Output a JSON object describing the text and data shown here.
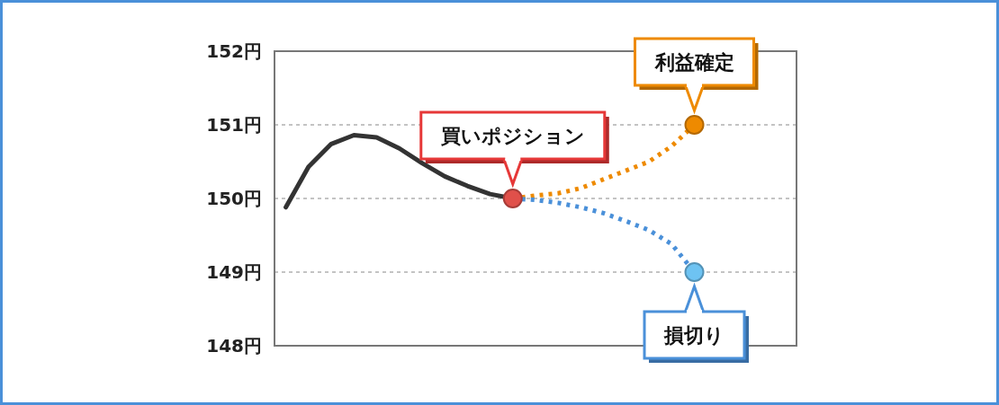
{
  "chart_data": {
    "type": "line",
    "ylim": [
      148,
      152
    ],
    "categories": [
      null,
      null,
      null,
      null,
      null,
      null,
      null,
      null,
      null,
      null,
      null,
      null,
      null,
      null,
      null,
      null,
      null,
      null,
      null,
      null,
      null,
      null,
      null
    ],
    "yticks": [
      {
        "value": 148,
        "label": "148円"
      },
      {
        "value": 149,
        "label": "149円"
      },
      {
        "value": 150,
        "label": "150円"
      },
      {
        "value": 151,
        "label": "151円"
      },
      {
        "value": 152,
        "label": "152円"
      }
    ],
    "tick_labels": "y",
    "grid": "y",
    "series": [
      {
        "color": "#333333",
        "values": [
          149.88,
          150.43,
          150.74,
          150.86,
          150.83,
          150.68,
          150.48,
          150.3,
          150.17,
          150.06,
          150,
          null,
          null,
          null,
          null,
          null,
          null,
          null,
          null,
          null,
          null,
          null,
          null
        ]
      },
      {
        "color": "#ee8a00",
        "line_style": "dotted",
        "values": [
          null,
          null,
          null,
          null,
          null,
          null,
          null,
          null,
          null,
          null,
          150,
          150.04,
          150.07,
          150.14,
          150.26,
          150.38,
          150.5,
          150.71,
          151,
          null,
          null,
          null,
          null
        ]
      },
      {
        "color": "#4a90d9",
        "line_style": "dotted",
        "values": [
          null,
          null,
          null,
          null,
          null,
          null,
          null,
          null,
          null,
          null,
          150,
          149.98,
          149.94,
          149.88,
          149.8,
          149.69,
          149.57,
          149.38,
          149,
          null,
          null,
          null,
          null
        ]
      }
    ],
    "annotations": [
      {
        "text": "買いポジション",
        "y": 150
      },
      {
        "text": "利益確定",
        "y": 151
      },
      {
        "text": "損切り",
        "y": 149
      }
    ]
  }
}
